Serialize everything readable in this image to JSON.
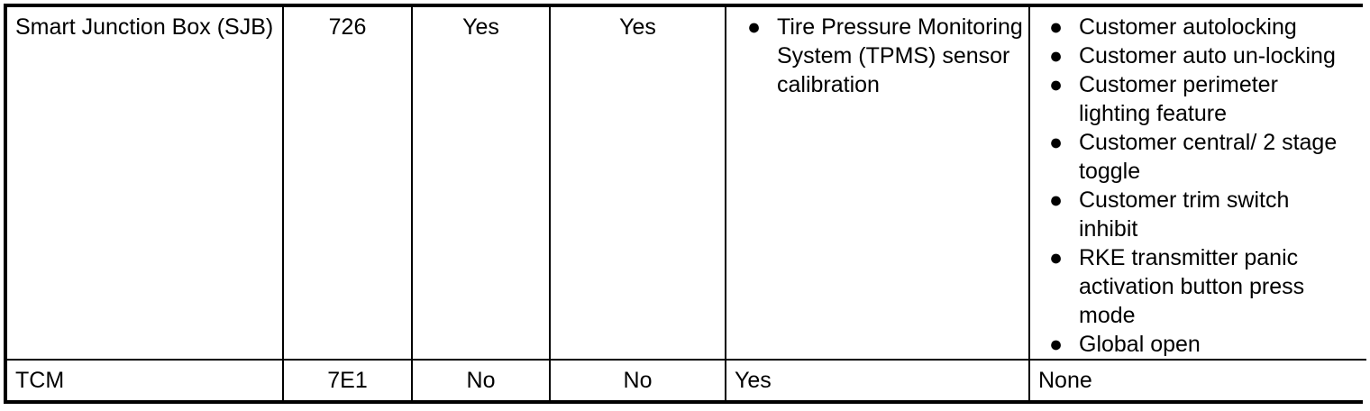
{
  "colors": {
    "border": "#000000",
    "background": "#ffffff",
    "text": "#000000"
  },
  "table": {
    "rows": [
      {
        "cells": [
          "Smart Junction Box (SJB)",
          "726",
          "Yes",
          "Yes",
          {
            "bullets": [
              "Tire Pressure Monitoring System (TPMS) sensor calibration"
            ]
          },
          {
            "bullets": [
              "Customer autolocking",
              "Customer auto un-locking",
              "Customer perimeter lighting feature",
              "Customer central/ 2 stage toggle",
              "Customer trim switch inhibit",
              "RKE transmitter panic activation button press mode",
              "Global open"
            ]
          }
        ]
      },
      {
        "cells": [
          "TCM",
          "7E1",
          "No",
          "No",
          "Yes",
          "None"
        ]
      }
    ]
  }
}
